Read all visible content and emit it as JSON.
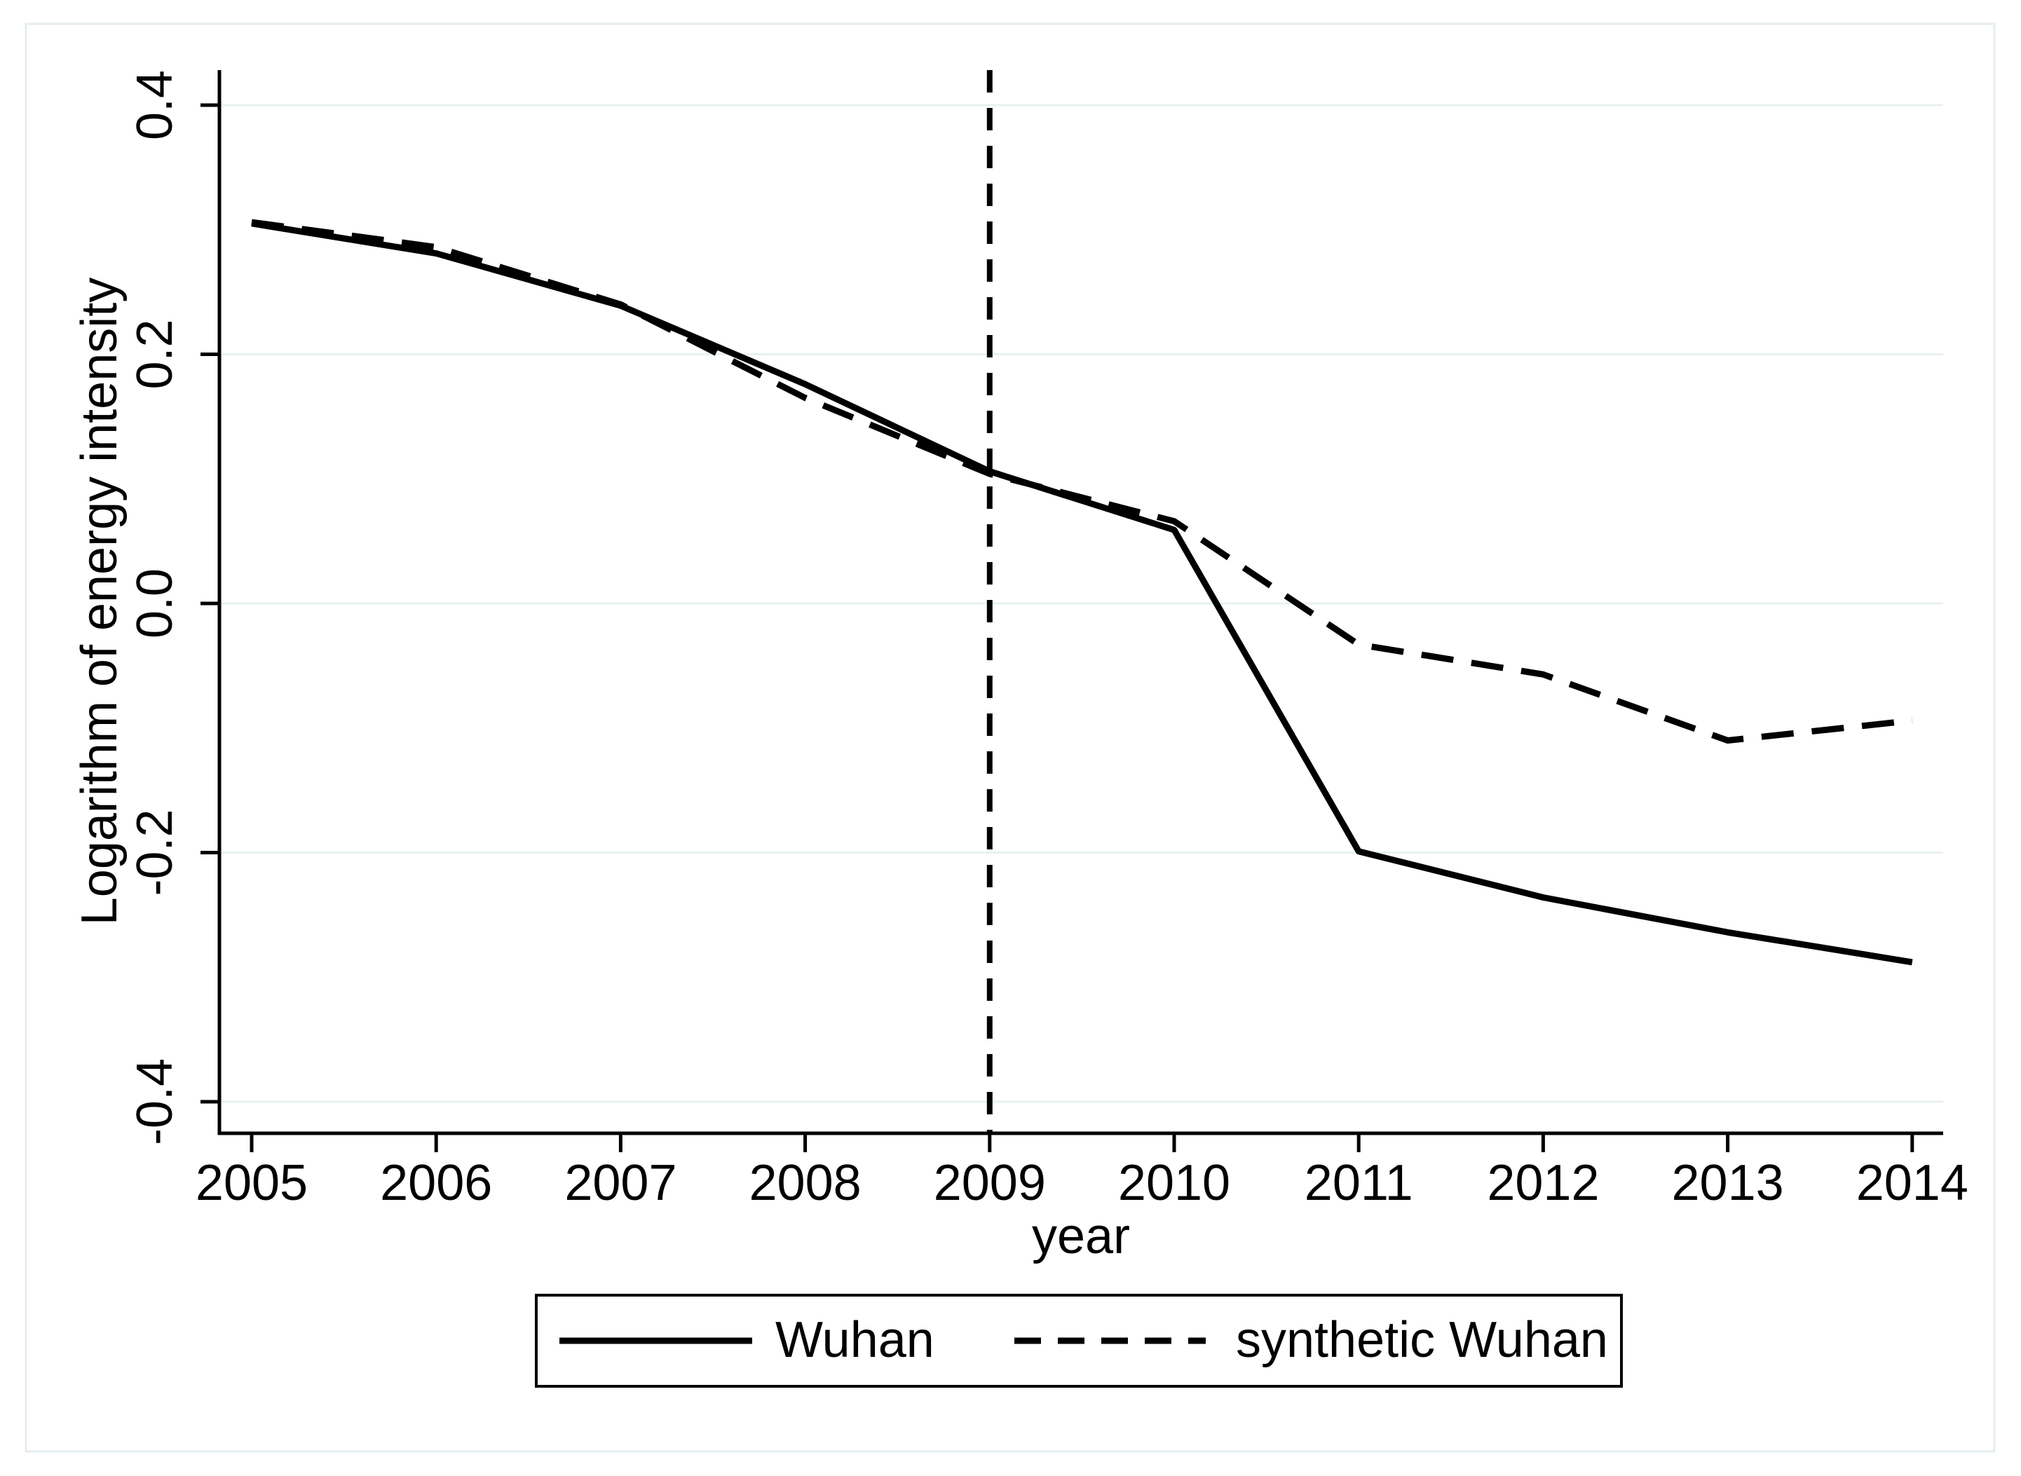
{
  "figure": {
    "background": "#ffffff",
    "frame_color": "#e4eef0",
    "gridline_color": "#e8f1f2",
    "line_color": "#000000",
    "axis_color": "#000000"
  },
  "chart_data": {
    "type": "line",
    "title": "",
    "xlabel": "year",
    "ylabel": "Logarithm of energy intensity",
    "x": [
      2005,
      2006,
      2007,
      2008,
      2009,
      2010,
      2011,
      2012,
      2013,
      2014
    ],
    "series": [
      {
        "name": "Wuhan",
        "style": "solid",
        "color": "#000000",
        "values": [
          0.305,
          0.281,
          0.239,
          0.176,
          0.106,
          0.059,
          -0.199,
          -0.236,
          -0.264,
          -0.288
        ]
      },
      {
        "name": "synthetic Wuhan",
        "style": "dashed",
        "color": "#000000",
        "values": [
          0.306,
          0.286,
          0.24,
          0.165,
          0.104,
          0.066,
          -0.033,
          -0.057,
          -0.11,
          -0.094
        ]
      }
    ],
    "xticks": [
      {
        "value": 2005,
        "label": "2005"
      },
      {
        "value": 2006,
        "label": "2006"
      },
      {
        "value": 2007,
        "label": "2007"
      },
      {
        "value": 2008,
        "label": "2008"
      },
      {
        "value": 2009,
        "label": "2009"
      },
      {
        "value": 2010,
        "label": "2010"
      },
      {
        "value": 2011,
        "label": "2011"
      },
      {
        "value": 2012,
        "label": "2012"
      },
      {
        "value": 2013,
        "label": "2013"
      },
      {
        "value": 2014,
        "label": "2014"
      }
    ],
    "yticks": [
      {
        "value": 0.4,
        "label": "0.4"
      },
      {
        "value": 0.2,
        "label": "0.2"
      },
      {
        "value": 0.0,
        "label": "0.0"
      },
      {
        "value": -0.2,
        "label": "-0.2"
      },
      {
        "value": -0.4,
        "label": "-0.4"
      }
    ],
    "xlim": [
      2004.83,
      2014.17
    ],
    "ylim": [
      -0.425,
      0.428
    ],
    "grid": "horizontal",
    "vline": {
      "x": 2009,
      "style": "dashed",
      "color": "#000000"
    },
    "legend": {
      "position": "bottom",
      "border": true,
      "entries": [
        {
          "label": "Wuhan",
          "style": "solid"
        },
        {
          "label": "synthetic Wuhan",
          "style": "dashed"
        }
      ]
    }
  }
}
